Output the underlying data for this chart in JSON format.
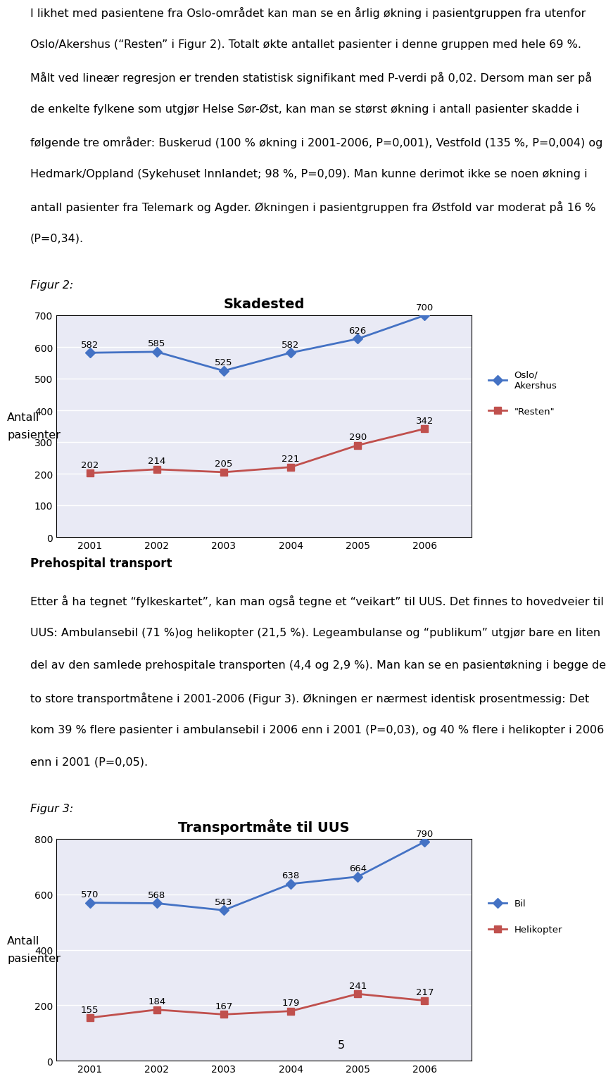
{
  "page_text_top": [
    "I likhet med pasientene fra Oslo-området kan man se en årlig økning i pasientgruppen fra utenfor",
    "Oslo/Akershus (“Resten” i Figur 2). Totalt økte antallet pasienter i denne gruppen med hele 69 %.",
    "Målt ved lineær regresjon er trenden statistisk signifikant med P-verdi på 0,02. Dersom man ser på",
    "de enkelte fylkene som utgjør Helse Sør-Øst, kan man se størst økning i antall pasienter skadde i",
    "følgende tre områder: Buskerud (100 % økning i 2001-2006, P=0,001), Vestfold (135 %, P=0,004) og",
    "Hedmark/Oppland (Sykehuset Innlandet; 98 %, P=0,09). Man kunne derimot ikke se noen økning i",
    "antall pasienter fra Telemark og Agder. Økningen i pasientgruppen fra Østfold var moderat på 16 %",
    "(P=0,34)."
  ],
  "figur2_label": "Figur 2:",
  "figur3_label": "Figur 3:",
  "prehospital_heading": "Prehospital transport",
  "prehospital_text": [
    "Etter å ha tegnet “fylkeskartet”, kan man også tegne et “veikart” til UUS. Det finnes to hovedveier til",
    "UUS: Ambulansebil (71 %)og helikopter (21,5 %). Legeambulanse og “publikum” utgjør bare en liten",
    "del av den samlede prehospitale transporten (4,4 og 2,9 %). Man kan se en pasientøkning i begge de",
    "to store transportmåtene i 2001-2006 (Figur 3). Økningen er nærmest identisk prosentmessig: Det",
    "kom 39 % flere pasienter i ambulansebil i 2006 enn i 2001 (P=0,03), og 40 % flere i helikopter i 2006",
    "enn i 2001 (P=0,05)."
  ],
  "chart1": {
    "title": "Skadested",
    "title_fontsize": 14,
    "title_fontweight": "bold",
    "years": [
      2001,
      2002,
      2003,
      2004,
      2005,
      2006
    ],
    "series1_label": "Oslo/\nAkershus",
    "series1_values": [
      582,
      585,
      525,
      582,
      626,
      700
    ],
    "series1_color": "#4472C4",
    "series2_label": "\"Resten\"",
    "series2_values": [
      202,
      214,
      205,
      221,
      290,
      342
    ],
    "series2_color": "#C0504D",
    "ylabel": "Antall\npasienter",
    "ylim": [
      0,
      700
    ],
    "yticks": [
      0,
      100,
      200,
      300,
      400,
      500,
      600,
      700
    ],
    "marker": "D",
    "marker_size": 7,
    "line_width": 2.0,
    "plot_bg": "#E9EAF5"
  },
  "chart2": {
    "title": "Transportmåte til UUS",
    "title_fontsize": 14,
    "title_fontweight": "bold",
    "years": [
      2001,
      2002,
      2003,
      2004,
      2005,
      2006
    ],
    "series1_label": "Bil",
    "series1_values": [
      570,
      568,
      543,
      638,
      664,
      790
    ],
    "series1_color": "#4472C4",
    "series2_label": "Helikopter",
    "series2_values": [
      155,
      184,
      167,
      179,
      241,
      217
    ],
    "series2_color": "#C0504D",
    "ylabel": "Antall\npasienter",
    "ylim": [
      0,
      800
    ],
    "yticks": [
      0,
      200,
      400,
      600,
      800
    ],
    "marker": "D",
    "marker_size": 7,
    "line_width": 2.0,
    "plot_bg": "#E9EAF5"
  },
  "page_number": "5",
  "font_size_body": 11.5
}
